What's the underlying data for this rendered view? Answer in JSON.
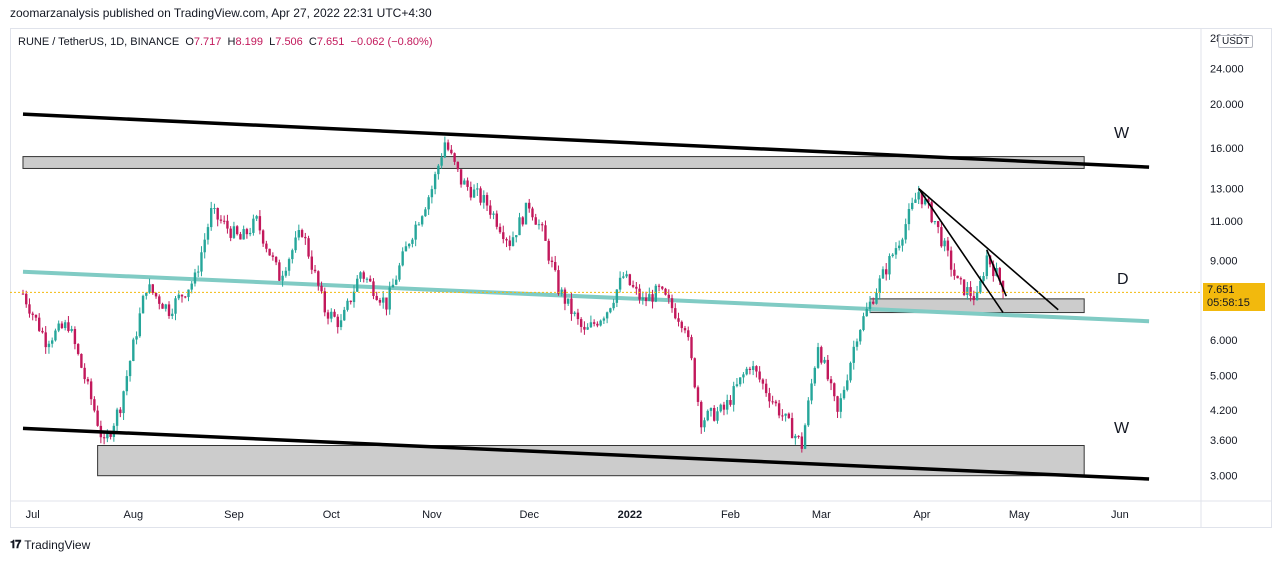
{
  "header": {
    "publisher": "zoomarzanalysis published on TradingView.com, Apr 27, 2022 22:31 UTC+4:30"
  },
  "symbol": {
    "name": "RUNE / TetherUS, 1D, BINANCE",
    "open_label": "O",
    "open": "7.717",
    "high_label": "H",
    "high": "8.199",
    "low_label": "L",
    "low": "7.506",
    "close_label": "C",
    "close": "7.651",
    "change": "−0.062 (−0.80%)"
  },
  "currency": "USDT",
  "price_tag": {
    "price": "7.651",
    "countdown": "05:58:15"
  },
  "footer": {
    "brand": "TradingView"
  },
  "annotations": {
    "w_top": "W",
    "w_bottom": "W",
    "d": "D"
  },
  "colors": {
    "up": "#26a69a",
    "down": "#c2185b",
    "channel": "#000000",
    "ma": "#80cbc4",
    "zone": "#cccccc",
    "tag": "#f2b90d"
  },
  "chart_data": {
    "type": "candlestick",
    "scale": "log",
    "ylim": [
      2.65,
      29.5
    ],
    "y_ticks": [
      "3.000",
      "3.600",
      "4.200",
      "5.000",
      "6.000",
      "9.000",
      "11.000",
      "13.000",
      "16.000",
      "20.000",
      "24.000"
    ],
    "top_tick_partial": "28.000",
    "x_ticks": [
      "Jul",
      "Aug",
      "Sep",
      "Oct",
      "Nov",
      "Dec",
      "2022",
      "Feb",
      "Mar",
      "Apr",
      "May",
      "Jun"
    ],
    "x_ticks_bold": [
      "2022"
    ],
    "last_price": 7.651,
    "price_path": [
      {
        "date": "2021-06-28",
        "price": 7.6
      },
      {
        "date": "2021-07-05",
        "price": 6.0
      },
      {
        "date": "2021-07-12",
        "price": 6.5
      },
      {
        "date": "2021-07-20",
        "price": 4.2
      },
      {
        "date": "2021-07-23",
        "price": 3.5
      },
      {
        "date": "2021-07-28",
        "price": 4.3
      },
      {
        "date": "2021-08-05",
        "price": 7.9
      },
      {
        "date": "2021-08-12",
        "price": 7.0
      },
      {
        "date": "2021-08-20",
        "price": 8.2
      },
      {
        "date": "2021-08-25",
        "price": 11.5
      },
      {
        "date": "2021-09-03",
        "price": 10.0
      },
      {
        "date": "2021-09-08",
        "price": 11.0
      },
      {
        "date": "2021-09-15",
        "price": 8.3
      },
      {
        "date": "2021-09-22",
        "price": 10.5
      },
      {
        "date": "2021-09-29",
        "price": 7.0
      },
      {
        "date": "2021-10-04",
        "price": 6.5
      },
      {
        "date": "2021-10-10",
        "price": 8.5
      },
      {
        "date": "2021-10-18",
        "price": 7.2
      },
      {
        "date": "2021-10-25",
        "price": 10.0
      },
      {
        "date": "2021-11-01",
        "price": 13.0
      },
      {
        "date": "2021-11-05",
        "price": 16.5
      },
      {
        "date": "2021-11-10",
        "price": 13.5
      },
      {
        "date": "2021-11-18",
        "price": 12.0
      },
      {
        "date": "2021-11-25",
        "price": 9.9
      },
      {
        "date": "2021-12-01",
        "price": 12.0
      },
      {
        "date": "2021-12-05",
        "price": 10.4
      },
      {
        "date": "2021-12-10",
        "price": 7.8
      },
      {
        "date": "2021-12-18",
        "price": 6.2
      },
      {
        "date": "2021-12-25",
        "price": 7.0
      },
      {
        "date": "2021-12-30",
        "price": 8.3
      },
      {
        "date": "2022-01-05",
        "price": 7.3
      },
      {
        "date": "2022-01-10",
        "price": 7.7
      },
      {
        "date": "2022-01-18",
        "price": 6.5
      },
      {
        "date": "2022-01-23",
        "price": 4.0
      },
      {
        "date": "2022-01-30",
        "price": 4.2
      },
      {
        "date": "2022-02-07",
        "price": 5.3
      },
      {
        "date": "2022-02-15",
        "price": 4.3
      },
      {
        "date": "2022-02-23",
        "price": 3.5
      },
      {
        "date": "2022-02-28",
        "price": 5.9
      },
      {
        "date": "2022-03-06",
        "price": 4.1
      },
      {
        "date": "2022-03-12",
        "price": 6.2
      },
      {
        "date": "2022-03-17",
        "price": 7.5
      },
      {
        "date": "2022-03-25",
        "price": 10.0
      },
      {
        "date": "2022-03-31",
        "price": 12.8
      },
      {
        "date": "2022-04-05",
        "price": 11.0
      },
      {
        "date": "2022-04-12",
        "price": 8.0
      },
      {
        "date": "2022-04-18",
        "price": 7.4
      },
      {
        "date": "2022-04-21",
        "price": 9.2
      },
      {
        "date": "2022-04-27",
        "price": 7.65
      }
    ],
    "drawings": {
      "channel_upper": [
        {
          "date": "2021-06-28",
          "price": 19.0
        },
        {
          "date": "2022-06-10",
          "price": 14.5
        }
      ],
      "channel_lower": [
        {
          "date": "2021-06-28",
          "price": 3.82
        },
        {
          "date": "2022-06-10",
          "price": 2.95
        }
      ],
      "moving_average": [
        {
          "date": "2021-06-28",
          "price": 8.5
        },
        {
          "date": "2022-06-10",
          "price": 6.6
        }
      ],
      "zone_top": [
        {
          "date": "2021-06-28",
          "price": 15.3
        },
        {
          "date": "2022-05-21",
          "price": 14.4
        }
      ],
      "zone_mid": [
        {
          "date": "2022-03-16",
          "price": 7.4
        },
        {
          "date": "2022-05-21",
          "price": 6.9
        }
      ],
      "zone_bottom": [
        {
          "date": "2021-07-21",
          "price": 3.5
        },
        {
          "date": "2022-05-21",
          "price": 3.0
        }
      ],
      "wedge_upper": [
        {
          "date": "2022-03-31",
          "price": 13.0
        },
        {
          "date": "2022-05-13",
          "price": 7.0
        }
      ],
      "wedge_lower": [
        {
          "date": "2022-03-31",
          "price": 13.0
        },
        {
          "date": "2022-04-26",
          "price": 6.9
        }
      ],
      "wedge_inner": [
        {
          "date": "2022-04-21",
          "price": 9.5
        },
        {
          "date": "2022-04-27",
          "price": 7.5
        }
      ]
    }
  }
}
